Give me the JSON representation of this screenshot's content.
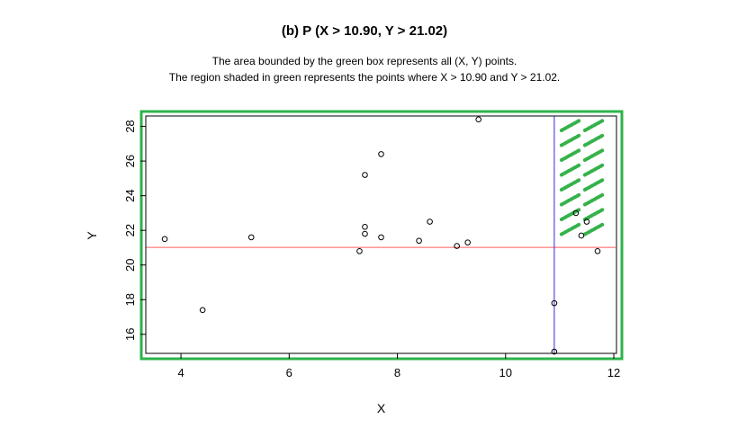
{
  "title": "(b) P (X > 10.90, Y > 21.02)",
  "caption_line1": "The area bounded by the green box represents all (X, Y) points.",
  "caption_line2": "The region shaded in green represents the points where X > 10.90 and Y > 21.02.",
  "chart_data": {
    "type": "scatter",
    "xlabel": "X",
    "ylabel": "Y",
    "xlim": [
      3.35,
      12.05
    ],
    "ylim": [
      14.9,
      28.6
    ],
    "xticks": [
      4,
      6,
      8,
      10,
      12
    ],
    "yticks": [
      16,
      18,
      20,
      22,
      24,
      26,
      28
    ],
    "grid": false,
    "points": [
      {
        "x": 3.7,
        "y": 21.5
      },
      {
        "x": 4.4,
        "y": 17.4
      },
      {
        "x": 5.3,
        "y": 21.6
      },
      {
        "x": 7.3,
        "y": 20.8
      },
      {
        "x": 7.4,
        "y": 25.2
      },
      {
        "x": 7.4,
        "y": 22.2
      },
      {
        "x": 7.4,
        "y": 21.8
      },
      {
        "x": 7.7,
        "y": 26.4
      },
      {
        "x": 7.7,
        "y": 21.6
      },
      {
        "x": 8.4,
        "y": 21.4
      },
      {
        "x": 8.6,
        "y": 22.5
      },
      {
        "x": 9.1,
        "y": 21.1
      },
      {
        "x": 9.3,
        "y": 21.3
      },
      {
        "x": 9.5,
        "y": 28.4
      },
      {
        "x": 10.9,
        "y": 17.8
      },
      {
        "x": 10.9,
        "y": 15.0
      },
      {
        "x": 11.3,
        "y": 23.0
      },
      {
        "x": 11.4,
        "y": 21.7
      },
      {
        "x": 11.5,
        "y": 22.5
      },
      {
        "x": 11.7,
        "y": 20.8
      }
    ],
    "vline": {
      "x": 10.9,
      "color": "#3a2bd6"
    },
    "hline": {
      "y": 21.02,
      "color": "#ff5a5a"
    },
    "box_color": "#2db34a",
    "shade_color": "#35b24a"
  }
}
